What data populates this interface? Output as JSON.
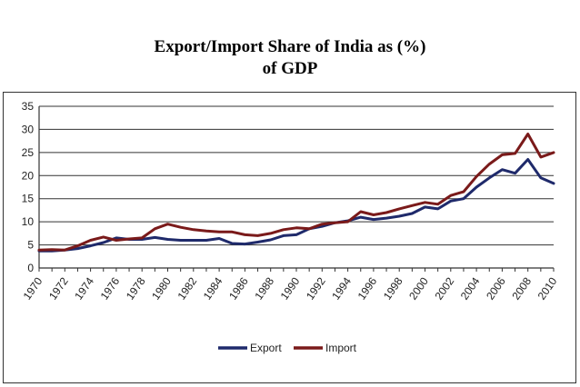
{
  "chart_title": {
    "line1": "Export/Import Share of India as (%)",
    "line2": "of GDP"
  },
  "chart_data": {
    "type": "line",
    "title": "Export/Import Share of India as (%) of GDP",
    "xlabel": "",
    "ylabel": "",
    "ylim": [
      0,
      35
    ],
    "yticks": [
      0,
      5,
      10,
      15,
      20,
      25,
      30,
      35
    ],
    "xticks": [
      "1970",
      "1972",
      "1974",
      "1976",
      "1978",
      "1980",
      "1982",
      "1984",
      "1986",
      "1988",
      "1990",
      "1992",
      "1994",
      "1996",
      "1998",
      "2000",
      "2002",
      "2004",
      "2006",
      "2008",
      "2010"
    ],
    "x": [
      1970,
      1971,
      1972,
      1973,
      1974,
      1975,
      1976,
      1977,
      1978,
      1979,
      1980,
      1981,
      1982,
      1983,
      1984,
      1985,
      1986,
      1987,
      1988,
      1989,
      1990,
      1991,
      1992,
      1993,
      1994,
      1995,
      1996,
      1997,
      1998,
      1999,
      2000,
      2001,
      2002,
      2003,
      2004,
      2005,
      2006,
      2007,
      2008,
      2009,
      2010
    ],
    "grid": "horizontal",
    "legend_position": "bottom",
    "series": [
      {
        "name": "Export",
        "color": "#1f2a6b",
        "values": [
          3.7,
          3.7,
          3.9,
          4.2,
          4.8,
          5.5,
          6.5,
          6.2,
          6.2,
          6.6,
          6.2,
          6.0,
          6.0,
          6.0,
          6.4,
          5.3,
          5.2,
          5.6,
          6.1,
          7.0,
          7.2,
          8.5,
          9.0,
          9.8,
          10.2,
          11.0,
          10.5,
          10.8,
          11.2,
          11.8,
          13.2,
          12.8,
          14.5,
          15.0,
          17.5,
          19.5,
          21.3,
          20.5,
          23.5,
          19.5,
          18.3
        ]
      },
      {
        "name": "Import",
        "color": "#7a1a1a",
        "values": [
          3.9,
          4.0,
          3.9,
          4.8,
          6.0,
          6.7,
          6.0,
          6.3,
          6.5,
          8.5,
          9.5,
          8.8,
          8.3,
          8.0,
          7.8,
          7.8,
          7.2,
          7.0,
          7.5,
          8.3,
          8.7,
          8.5,
          9.5,
          9.8,
          10.0,
          12.2,
          11.5,
          12.0,
          12.8,
          13.5,
          14.2,
          13.8,
          15.7,
          16.5,
          19.8,
          22.5,
          24.5,
          24.8,
          29.0,
          24.0,
          25.0
        ]
      }
    ]
  }
}
